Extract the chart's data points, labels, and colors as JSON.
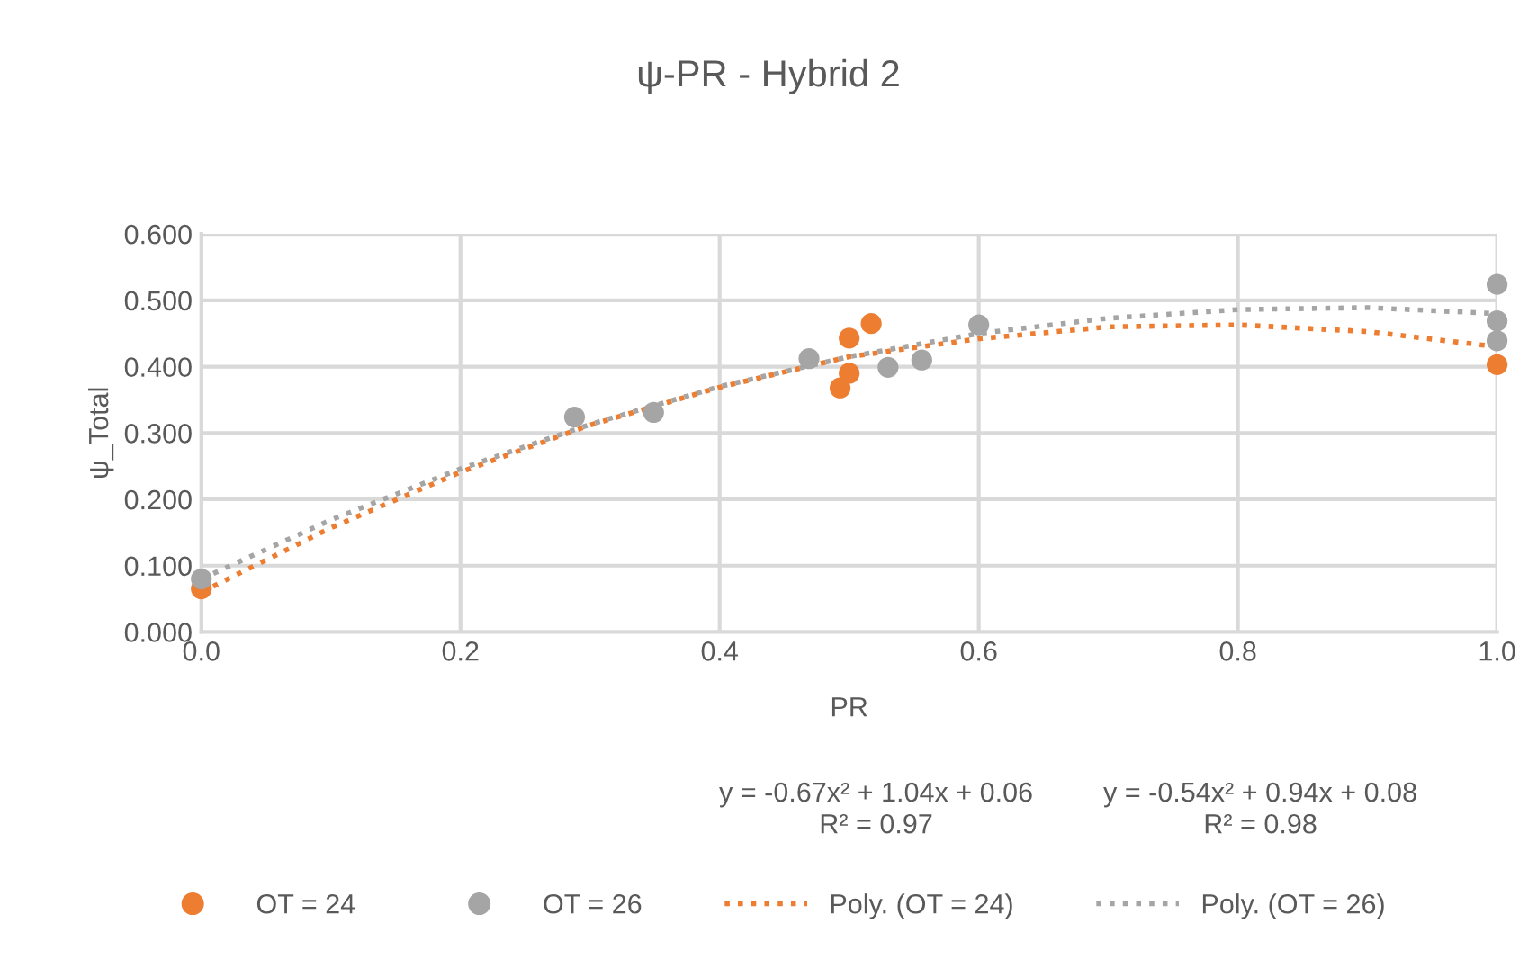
{
  "chart_data": {
    "type": "scatter",
    "title": "ψ-PR - Hybrid 2",
    "xlabel": "PR",
    "ylabel": "ψ_Total",
    "series": [
      {
        "name": "OT = 24",
        "color": "#ed7d31",
        "marker": "circle",
        "x": [
          0.0,
          0.493,
          0.5,
          0.5,
          0.517,
          1.0
        ],
        "values": [
          0.065,
          0.368,
          0.39,
          0.443,
          0.465,
          0.403
        ]
      },
      {
        "name": "OT = 26",
        "color": "#a5a5a5",
        "marker": "circle",
        "x": [
          0.0,
          0.288,
          0.349,
          0.469,
          0.53,
          0.556,
          0.6,
          1.0,
          1.0,
          1.0
        ],
        "values": [
          0.08,
          0.324,
          0.331,
          0.412,
          0.399,
          0.41,
          0.463,
          0.524,
          0.469,
          0.439
        ]
      },
      {
        "name": "Poly. (OT = 24)",
        "color": "#ed7d31",
        "type": "line",
        "line_style": "dotted",
        "x": [
          0,
          0.1,
          0.2,
          0.3,
          0.4,
          0.5,
          0.6,
          0.7,
          0.8,
          0.9,
          1.0
        ],
        "values": [
          0.06,
          0.157,
          0.241,
          0.312,
          0.369,
          0.415,
          0.442,
          0.46,
          0.463,
          0.453,
          0.43
        ]
      },
      {
        "name": "Poly. (OT = 26)",
        "color": "#a5a5a5",
        "type": "line",
        "line_style": "dotted",
        "x": [
          0,
          0.1,
          0.2,
          0.3,
          0.4,
          0.5,
          0.6,
          0.7,
          0.8,
          0.9,
          1.0
        ],
        "values": [
          0.08,
          0.169,
          0.246,
          0.313,
          0.37,
          0.415,
          0.45,
          0.473,
          0.486,
          0.489,
          0.48
        ]
      }
    ],
    "xlim": [
      0,
      1.0
    ],
    "xticks": [
      {
        "value": 0,
        "label": "0.0"
      },
      0.2,
      0.4,
      0.6,
      0.8,
      {
        "value": 1.0,
        "label": "1.0"
      }
    ],
    "ylim": [
      0,
      0.6
    ],
    "yticks": [
      {
        "value": 0,
        "label": "0.000"
      },
      {
        "value": 0.1,
        "label": "0.100"
      },
      {
        "value": 0.2,
        "label": "0.200"
      },
      {
        "value": 0.3,
        "label": "0.300"
      },
      {
        "value": 0.4,
        "label": "0.400"
      },
      {
        "value": 0.5,
        "label": "0.500"
      },
      {
        "value": 0.6,
        "label": "0.600"
      }
    ],
    "annotations": [
      "y = -0.67x² + 1.04x + 0.06\nR² = 0.97",
      "y = -0.54x² + 0.94x + 0.08\nR² = 0.98"
    ],
    "grid": true,
    "legend": "bottom"
  }
}
